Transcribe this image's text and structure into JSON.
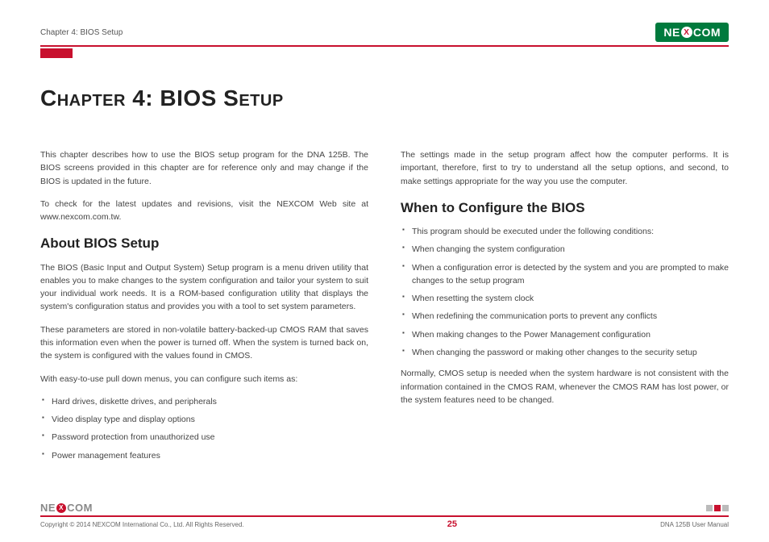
{
  "header": {
    "chapter_label": "Chapter 4: BIOS Setup",
    "logo_left": "NE",
    "logo_x": "X",
    "logo_right": "COM"
  },
  "title": "Chapter 4: BIOS Setup",
  "col_left": {
    "intro1": "This chapter describes how to use the BIOS setup program for the DNA 125B. The BIOS screens provided in this chapter are for reference only and may change if the BIOS is updated in the future.",
    "intro2": "To check for the latest updates and revisions, visit the NEXCOM Web site at www.nexcom.com.tw.",
    "h2": "About BIOS Setup",
    "p1": "The BIOS (Basic Input and Output System) Setup program is a menu driven utility that enables you to make changes to the system configuration and tailor your system to suit your individual work needs. It is a ROM-based configuration utility that displays the system's configuration status and provides you with a tool to set system parameters.",
    "p2": "These parameters are stored in non-volatile battery-backed-up CMOS RAM that saves this information even when the power is turned off. When the system is turned back on, the system is configured with the values found in CMOS.",
    "p3": "With easy-to-use pull down menus, you can configure such items as:",
    "items": [
      "Hard drives, diskette drives, and peripherals",
      "Video display type and display options",
      "Password protection from unauthorized use",
      "Power management features"
    ]
  },
  "col_right": {
    "p1": "The settings made in the setup program affect how the computer performs. It is important, therefore, first to try to understand all the setup options, and second, to make settings appropriate for the way you use the computer.",
    "h2": "When to Configure the BIOS",
    "items": [
      "This program should be executed under the following conditions:",
      "When changing the system configuration",
      "When a configuration error is detected by the system and you are prompted to make changes to the setup program",
      "When resetting the system clock",
      "When redefining the communication ports to prevent any conflicts",
      "When making changes to the Power Management configuration",
      "When changing the password or making other changes to the security setup"
    ],
    "p2": "Normally, CMOS setup is needed when the system hardware is not consistent with the information contained in the CMOS RAM, whenever the CMOS RAM has lost power, or the system features need to be changed."
  },
  "footer": {
    "logo_left": "NE",
    "logo_x": "X",
    "logo_right": "COM",
    "copyright": "Copyright © 2014 NEXCOM International Co., Ltd. All Rights Reserved.",
    "page": "25",
    "manual": "DNA 125B User Manual"
  }
}
